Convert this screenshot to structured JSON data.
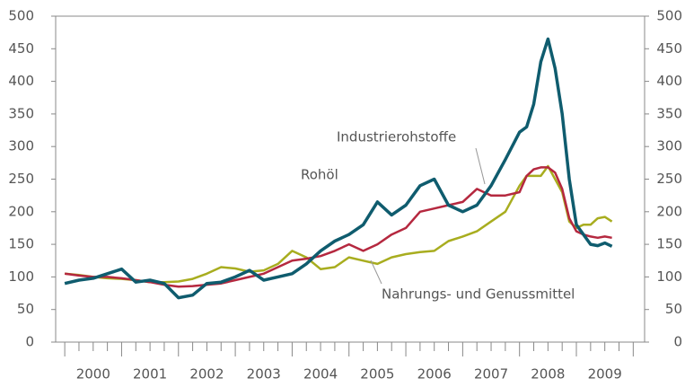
{
  "chart_data": {
    "type": "line",
    "x": [
      2000.0,
      2000.25,
      2000.5,
      2000.75,
      2001.0,
      2001.25,
      2001.5,
      2001.75,
      2002.0,
      2002.25,
      2002.5,
      2002.75,
      2003.0,
      2003.25,
      2003.5,
      2003.75,
      2004.0,
      2004.25,
      2004.5,
      2004.75,
      2005.0,
      2005.25,
      2005.5,
      2005.75,
      2006.0,
      2006.25,
      2006.5,
      2006.75,
      2007.0,
      2007.25,
      2007.5,
      2007.75,
      2008.0,
      2008.125,
      2008.25,
      2008.375,
      2008.5,
      2008.625,
      2008.75,
      2008.875,
      2009.0,
      2009.125,
      2009.25,
      2009.375,
      2009.5,
      2009.625
    ],
    "series": [
      {
        "name": "Industrierohstoffe",
        "color": "#0f5c6e",
        "values": [
          90,
          95,
          98,
          105,
          112,
          92,
          95,
          90,
          68,
          72,
          90,
          92,
          100,
          110,
          95,
          100,
          105,
          120,
          140,
          155,
          165,
          180,
          215,
          195,
          210,
          240,
          250,
          210,
          200,
          210,
          240,
          280,
          322,
          330,
          365,
          430,
          465,
          420,
          350,
          250,
          180,
          165,
          150,
          148,
          152,
          147
        ]
      },
      {
        "name": "Rohöl",
        "color": "#b5283f",
        "values": [
          105,
          102,
          100,
          100,
          98,
          95,
          92,
          88,
          85,
          86,
          88,
          90,
          95,
          100,
          105,
          115,
          125,
          128,
          132,
          140,
          150,
          140,
          150,
          165,
          175,
          200,
          205,
          210,
          215,
          235,
          225,
          225,
          230,
          255,
          265,
          268,
          268,
          260,
          235,
          190,
          170,
          165,
          162,
          160,
          162,
          160
        ]
      },
      {
        "name": "Nahrungs- und Genussmittel",
        "color": "#a8ad1f",
        "values": [
          105,
          103,
          100,
          98,
          97,
          95,
          92,
          92,
          93,
          97,
          105,
          115,
          113,
          108,
          110,
          120,
          140,
          130,
          112,
          115,
          130,
          125,
          120,
          130,
          135,
          138,
          140,
          155,
          162,
          170,
          185,
          200,
          240,
          255,
          255,
          255,
          270,
          250,
          230,
          185,
          175,
          180,
          180,
          190,
          192,
          185
        ]
      }
    ],
    "xlim": [
      1999.84,
      2010.2
    ],
    "xticks": [
      {
        "value": 2000.5,
        "label": "2000"
      },
      {
        "value": 2001.5,
        "label": "2001"
      },
      {
        "value": 2002.5,
        "label": "2002"
      },
      {
        "value": 2003.5,
        "label": "2003"
      },
      {
        "value": 2004.5,
        "label": "2004"
      },
      {
        "value": 2005.5,
        "label": "2005"
      },
      {
        "value": 2006.5,
        "label": "2006"
      },
      {
        "value": 2007.5,
        "label": "2007"
      },
      {
        "value": 2008.5,
        "label": "2008"
      },
      {
        "value": 2009.5,
        "label": "2009"
      }
    ],
    "ylim": [
      0,
      500
    ],
    "yticks": [
      0,
      50,
      100,
      150,
      200,
      250,
      300,
      350,
      400,
      450,
      500
    ],
    "y2lim": [
      0,
      500
    ],
    "y2ticks": [
      0,
      50,
      100,
      150,
      200,
      250,
      300,
      350,
      400,
      450,
      500
    ]
  }
}
